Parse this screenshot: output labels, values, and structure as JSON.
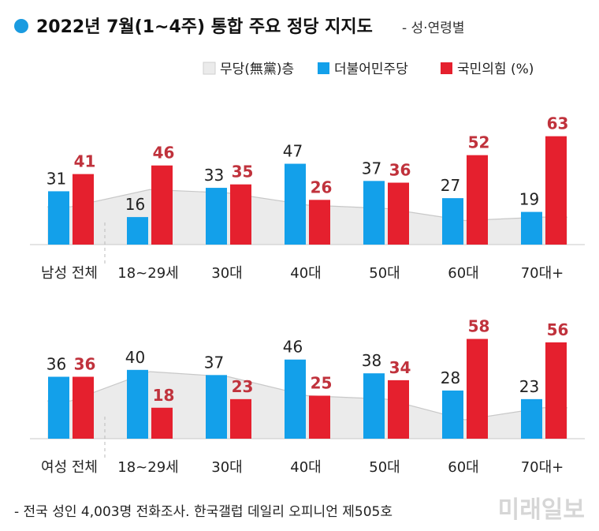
{
  "title": "2022년 7월(1~4주) 통합 주요 정당 지지도",
  "subtitle": "- 성·연령별",
  "footnote": "- 전국 성인 4,003명 전화조사. 한국갤럽 데일리 오피니언 제505호",
  "watermark": "미래일보",
  "colors": {
    "title_dot": "#1a9be0",
    "democratic": "#13a0ea",
    "ppp": "#e5202e",
    "ppp_label": "#c0323c",
    "independent_area": "#ebebeb",
    "independent_line": "#c8c8c8",
    "baseline": "#c8c8c8"
  },
  "chart_data": {
    "type": "bar",
    "legend": [
      {
        "name": "무당(無黨)층",
        "key": "independent"
      },
      {
        "name": "더불어민주당",
        "key": "democratic"
      },
      {
        "name": "국민의힘 (%)",
        "key": "ppp"
      }
    ],
    "legend_position": "top-right",
    "panels": [
      {
        "categories": [
          "남성 전체",
          "18~29세",
          "30대",
          "40대",
          "50대",
          "60대",
          "70대+"
        ],
        "series": [
          {
            "name": "더불어민주당",
            "key": "democratic",
            "values": [
              31,
              16,
              33,
              47,
              37,
              27,
              19
            ]
          },
          {
            "name": "국민의힘",
            "key": "ppp",
            "values": [
              41,
              46,
              35,
              26,
              36,
              52,
              63
            ]
          },
          {
            "name": "무당(無黨)층",
            "key": "independent",
            "values": [
              22,
              32,
              30,
              23,
              21,
              14,
              16
            ]
          }
        ]
      },
      {
        "categories": [
          "여성 전체",
          "18~29세",
          "30대",
          "40대",
          "50대",
          "60대",
          "70대+"
        ],
        "series": [
          {
            "name": "더불어민주당",
            "key": "democratic",
            "values": [
              36,
              40,
              37,
              46,
              38,
              28,
              23
            ]
          },
          {
            "name": "국민의힘",
            "key": "ppp",
            "values": [
              36,
              18,
              23,
              25,
              34,
              58,
              56
            ]
          },
          {
            "name": "무당(無黨)층",
            "key": "independent",
            "values": [
              22,
              39,
              36,
              25,
              23,
              11,
              18
            ]
          }
        ]
      }
    ],
    "ylim": [
      0,
      70
    ]
  }
}
